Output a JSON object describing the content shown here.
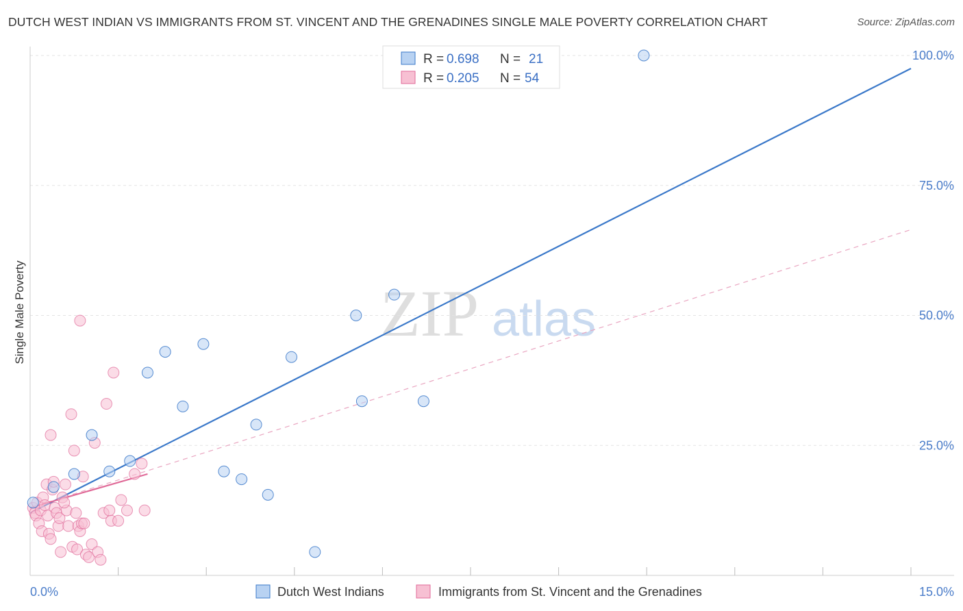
{
  "header": {
    "title": "DUTCH WEST INDIAN VS IMMIGRANTS FROM ST. VINCENT AND THE GRENADINES SINGLE MALE POVERTY CORRELATION CHART",
    "source": "Source: ZipAtlas.com"
  },
  "watermark": {
    "zip": "ZIP",
    "atlas": "atlas"
  },
  "chart_data": {
    "type": "scatter",
    "ylabel": "Single Male Poverty",
    "xlabel": "",
    "xlim": [
      0,
      15
    ],
    "ylim": [
      0,
      100
    ],
    "x_tick_labels": [
      "0.0%",
      "15.0%"
    ],
    "y_ticks": [
      25,
      50,
      75,
      100
    ],
    "y_tick_labels": [
      "25.0%",
      "50.0%",
      "75.0%",
      "100.0%"
    ],
    "grid": true,
    "legend_position": "top-center",
    "colors": {
      "blue": "#3a78c9",
      "blue_fill": "#b8d2f2",
      "pink": "#e06a98",
      "pink_fill": "#f7c0d3"
    },
    "legend": [
      {
        "r_label": "R =",
        "r_value": "0.698",
        "n_label": "N =",
        "n_value": "21"
      },
      {
        "r_label": "R =",
        "r_value": "0.205",
        "n_label": "N =",
        "n_value": "54"
      }
    ],
    "series": [
      {
        "name": "Dutch West Indians",
        "color": "#3a78c9",
        "points": [
          [
            0.05,
            14
          ],
          [
            0.4,
            17
          ],
          [
            0.75,
            19.5
          ],
          [
            1.05,
            27
          ],
          [
            1.35,
            20
          ],
          [
            1.7,
            22
          ],
          [
            2.0,
            39
          ],
          [
            2.3,
            43
          ],
          [
            2.6,
            32.5
          ],
          [
            2.95,
            44.5
          ],
          [
            3.3,
            20
          ],
          [
            3.6,
            18.5
          ],
          [
            3.85,
            29
          ],
          [
            4.05,
            15.5
          ],
          [
            4.45,
            42
          ],
          [
            4.85,
            4.5
          ],
          [
            5.55,
            50
          ],
          [
            5.65,
            33.5
          ],
          [
            6.2,
            54
          ],
          [
            6.7,
            33.5
          ],
          [
            10.45,
            100
          ]
        ],
        "trend": {
          "x": [
            0.0,
            15.0
          ],
          "y": [
            12.0,
            97.5
          ],
          "style": "solid"
        }
      },
      {
        "name": "Immigrants from St. Vincent and the Grenadines",
        "color": "#e06a98",
        "points": [
          [
            0.05,
            13
          ],
          [
            0.08,
            12
          ],
          [
            0.1,
            11.5
          ],
          [
            0.12,
            14
          ],
          [
            0.15,
            10
          ],
          [
            0.18,
            12.5
          ],
          [
            0.2,
            8.5
          ],
          [
            0.22,
            15
          ],
          [
            0.25,
            13.5
          ],
          [
            0.28,
            17.5
          ],
          [
            0.3,
            11.5
          ],
          [
            0.32,
            8
          ],
          [
            0.35,
            27
          ],
          [
            0.35,
            7
          ],
          [
            0.38,
            16.5
          ],
          [
            0.4,
            18
          ],
          [
            0.42,
            13
          ],
          [
            0.45,
            12
          ],
          [
            0.48,
            9.5
          ],
          [
            0.5,
            11
          ],
          [
            0.52,
            4.5
          ],
          [
            0.55,
            15
          ],
          [
            0.6,
            17.5
          ],
          [
            0.62,
            12.5
          ],
          [
            0.65,
            9.5
          ],
          [
            0.7,
            31
          ],
          [
            0.72,
            5.5
          ],
          [
            0.75,
            24
          ],
          [
            0.78,
            12
          ],
          [
            0.8,
            5
          ],
          [
            0.82,
            9.5
          ],
          [
            0.85,
            49
          ],
          [
            0.85,
            8.5
          ],
          [
            0.88,
            10
          ],
          [
            0.9,
            19
          ],
          [
            0.92,
            10
          ],
          [
            0.95,
            4
          ],
          [
            1.0,
            3.5
          ],
          [
            1.05,
            6
          ],
          [
            1.1,
            25.5
          ],
          [
            1.15,
            4.5
          ],
          [
            1.2,
            3
          ],
          [
            1.25,
            12
          ],
          [
            1.3,
            33
          ],
          [
            1.35,
            12.5
          ],
          [
            1.38,
            10.5
          ],
          [
            1.42,
            39
          ],
          [
            1.5,
            10.5
          ],
          [
            1.55,
            14.5
          ],
          [
            1.65,
            12.5
          ],
          [
            1.78,
            19.5
          ],
          [
            1.9,
            21.5
          ],
          [
            1.95,
            12.5
          ],
          [
            0.58,
            14
          ]
        ],
        "trend_solid": {
          "x": [
            0.0,
            2.0
          ],
          "y": [
            13.0,
            19.5
          ],
          "style": "solid"
        },
        "trend_dashed": {
          "x": [
            0.0,
            15.0
          ],
          "y": [
            13.0,
            66.5
          ],
          "style": "dashed"
        }
      }
    ]
  }
}
